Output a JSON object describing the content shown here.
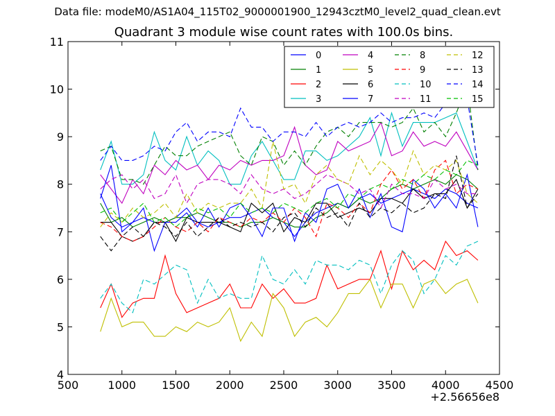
{
  "figure": {
    "suptitle": "Data file: modeM0/AS1A04_115T02_9000001900_12943cztM0_level2_quad_clean.evt",
    "title": "Quadrant 3 module wise count rates with 100.0s bins."
  },
  "chart_data": {
    "type": "line",
    "x_offset_label": "+2.56656e8",
    "xlim": [
      500,
      4500
    ],
    "ylim": [
      4,
      11
    ],
    "xticks": [
      500,
      1000,
      1500,
      2000,
      2500,
      3000,
      3500,
      4000,
      4500
    ],
    "yticks": [
      4,
      5,
      6,
      7,
      8,
      9,
      10,
      11
    ],
    "x": [
      800,
      900,
      1000,
      1100,
      1200,
      1300,
      1400,
      1500,
      1600,
      1700,
      1800,
      1900,
      2000,
      2100,
      2200,
      2300,
      2400,
      2500,
      2600,
      2700,
      2800,
      2900,
      3000,
      3100,
      3200,
      3300,
      3400,
      3500,
      3600,
      3700,
      3800,
      3900,
      4000,
      4100,
      4200,
      4300
    ],
    "grid": false,
    "legend_position": "upper right",
    "legend_columns": 4,
    "series": [
      {
        "name": "0",
        "color": "#0000ff",
        "dash": "solid",
        "values": [
          7.8,
          7.3,
          7.1,
          7.2,
          7.3,
          7.2,
          7.2,
          7.3,
          7.5,
          7.2,
          7.1,
          7.2,
          7.3,
          7.3,
          7.4,
          7.5,
          7.3,
          7.2,
          6.9,
          7.2,
          7.4,
          7.5,
          7.6,
          7.5,
          7.7,
          7.8,
          7.6,
          7.7,
          7.8,
          7.9,
          7.8,
          7.7,
          7.9,
          7.8,
          7.6,
          7.5
        ]
      },
      {
        "name": "1",
        "color": "#008000",
        "dash": "solid",
        "values": [
          7.6,
          7.2,
          7.3,
          7.1,
          7.2,
          7.3,
          7.2,
          7.3,
          7.3,
          7.4,
          7.3,
          7.2,
          7.2,
          7.1,
          7.2,
          7.2,
          7.3,
          7.2,
          7.1,
          7.1,
          7.3,
          7.4,
          7.6,
          7.5,
          7.7,
          7.6,
          7.7,
          7.9,
          8.0,
          7.9,
          8.0,
          8.1,
          8.0,
          8.2,
          8.1,
          7.9
        ]
      },
      {
        "name": "2",
        "color": "#ff0000",
        "dash": "solid",
        "values": [
          5.4,
          5.9,
          5.2,
          5.5,
          5.6,
          5.6,
          6.5,
          5.7,
          5.3,
          5.4,
          5.5,
          5.6,
          5.9,
          5.4,
          5.4,
          5.9,
          5.6,
          5.8,
          5.5,
          5.5,
          5.6,
          6.3,
          5.8,
          5.9,
          6.0,
          6.0,
          6.6,
          5.8,
          6.6,
          6.2,
          6.4,
          6.2,
          6.8,
          6.5,
          6.6,
          6.4
        ]
      },
      {
        "name": "3",
        "color": "#00bfbf",
        "dash": "solid",
        "values": [
          8.3,
          8.9,
          8.0,
          8.0,
          8.2,
          9.1,
          8.5,
          8.3,
          9.0,
          8.4,
          8.7,
          8.5,
          8.0,
          8.0,
          8.6,
          8.9,
          8.5,
          8.1,
          8.1,
          8.7,
          8.7,
          8.5,
          8.6,
          8.8,
          9.0,
          9.4,
          8.6,
          9.5,
          8.8,
          9.3,
          9.3,
          9.3,
          9.4,
          9.5,
          8.9,
          8.3
        ]
      },
      {
        "name": "4",
        "color": "#bf00bf",
        "dash": "solid",
        "values": [
          8.2,
          7.9,
          7.6,
          8.1,
          7.8,
          8.4,
          8.2,
          8.5,
          8.3,
          8.4,
          8.1,
          8.4,
          8.3,
          8.5,
          8.4,
          8.5,
          8.5,
          8.6,
          9.2,
          8.4,
          8.2,
          8.3,
          8.9,
          8.7,
          8.8,
          8.9,
          9.3,
          8.6,
          8.7,
          9.1,
          8.8,
          8.9,
          8.8,
          9.1,
          8.7,
          8.3
        ]
      },
      {
        "name": "5",
        "color": "#bfbf00",
        "dash": "solid",
        "values": [
          4.9,
          5.6,
          5.0,
          5.1,
          5.1,
          4.8,
          4.8,
          5.0,
          4.9,
          5.1,
          5.0,
          5.1,
          5.4,
          4.7,
          5.1,
          4.8,
          5.7,
          5.4,
          4.8,
          5.1,
          5.2,
          5.0,
          5.3,
          5.7,
          5.7,
          6.0,
          5.4,
          5.9,
          5.9,
          5.4,
          5.9,
          6.0,
          5.7,
          5.9,
          6.0,
          5.5
        ]
      },
      {
        "name": "6",
        "color": "#000000",
        "dash": "solid",
        "values": [
          7.2,
          7.2,
          6.9,
          6.8,
          6.9,
          7.2,
          7.2,
          6.8,
          7.3,
          7.2,
          7.2,
          7.2,
          7.1,
          7.0,
          7.6,
          7.4,
          7.6,
          7.0,
          7.3,
          7.2,
          7.6,
          7.6,
          7.3,
          7.4,
          7.5,
          7.4,
          7.7,
          7.7,
          7.6,
          7.9,
          7.7,
          7.8,
          7.8,
          8.1,
          7.5,
          7.9
        ]
      },
      {
        "name": "7",
        "color": "#0000ff",
        "dash": "solid",
        "values": [
          7.7,
          8.4,
          7.0,
          7.2,
          7.5,
          6.6,
          7.2,
          7.2,
          7.4,
          7.1,
          7.5,
          7.1,
          7.5,
          7.6,
          7.3,
          6.9,
          7.5,
          7.5,
          6.8,
          7.4,
          7.2,
          7.9,
          8.0,
          7.5,
          7.9,
          7.3,
          7.8,
          7.1,
          7.0,
          8.1,
          7.9,
          7.5,
          7.8,
          7.5,
          8.2,
          7.1
        ]
      },
      {
        "name": "8",
        "color": "#008000",
        "dash": "dashed",
        "values": [
          8.7,
          8.8,
          8.1,
          8.1,
          8.0,
          8.4,
          8.8,
          8.6,
          8.6,
          8.8,
          8.9,
          9.0,
          9.1,
          8.6,
          8.4,
          9.0,
          8.9,
          8.4,
          8.7,
          8.4,
          8.8,
          9.1,
          9.2,
          9.0,
          9.3,
          9.3,
          9.3,
          9.2,
          9.3,
          9.6,
          9.1,
          9.3,
          9.0,
          9.5,
          10.1,
          8.3
        ]
      },
      {
        "name": "9",
        "color": "#ff0000",
        "dash": "dashed",
        "values": [
          7.2,
          7.1,
          6.9,
          6.8,
          6.9,
          7.1,
          7.3,
          7.1,
          7.0,
          7.2,
          7.0,
          7.3,
          7.2,
          7.1,
          7.3,
          7.2,
          7.4,
          7.2,
          7.5,
          7.3,
          6.9,
          7.6,
          7.5,
          7.3,
          7.6,
          7.4,
          8.0,
          8.3,
          7.9,
          8.1,
          7.7,
          8.3,
          8.5,
          7.8,
          8.0,
          7.9
        ]
      },
      {
        "name": "10",
        "color": "#00bfbf",
        "dash": "dashed",
        "values": [
          5.6,
          5.9,
          5.5,
          5.3,
          6.0,
          5.9,
          6.1,
          6.3,
          6.2,
          5.5,
          6.0,
          5.6,
          5.7,
          5.6,
          5.6,
          6.5,
          6.0,
          5.9,
          6.2,
          5.9,
          6.4,
          6.3,
          6.3,
          6.2,
          6.4,
          6.3,
          5.7,
          6.3,
          6.6,
          6.4,
          5.7,
          6.0,
          6.5,
          6.3,
          6.7,
          6.8
        ]
      },
      {
        "name": "11",
        "color": "#bf00bf",
        "dash": "dashed",
        "values": [
          7.9,
          8.1,
          8.2,
          7.9,
          8.1,
          7.7,
          7.8,
          8.2,
          7.6,
          8.0,
          8.1,
          8.1,
          8.0,
          7.8,
          8.2,
          7.9,
          7.8,
          7.9,
          7.7,
          7.8,
          8.0,
          8.2,
          8.1,
          8.0,
          7.8,
          7.9,
          7.5,
          8.0,
          7.8,
          7.8,
          7.7,
          8.1,
          7.9,
          8.0,
          7.8,
          7.8
        ]
      },
      {
        "name": "12",
        "color": "#bfbf00",
        "dash": "dashed",
        "values": [
          7.1,
          7.4,
          7.2,
          7.5,
          7.3,
          7.4,
          7.6,
          7.3,
          7.8,
          7.4,
          7.6,
          7.5,
          7.6,
          7.6,
          7.9,
          7.5,
          8.9,
          7.9,
          8.0,
          7.6,
          8.2,
          8.4,
          8.1,
          8.0,
          8.6,
          8.2,
          8.5,
          8.3,
          8.0,
          8.7,
          8.2,
          8.4,
          8.3,
          8.5,
          7.8,
          7.6
        ]
      },
      {
        "name": "13",
        "color": "#000000",
        "dash": "dashed",
        "values": [
          6.9,
          6.6,
          6.9,
          7.1,
          6.9,
          7.2,
          7.1,
          6.9,
          7.2,
          6.9,
          7.1,
          7.3,
          7.1,
          7.2,
          7.1,
          7.2,
          7.0,
          7.3,
          7.4,
          7.1,
          7.5,
          7.3,
          7.4,
          7.1,
          7.6,
          7.3,
          7.5,
          7.4,
          7.6,
          7.4,
          7.5,
          7.8,
          7.7,
          8.6,
          7.5,
          7.8
        ]
      },
      {
        "name": "14",
        "color": "#0000ff",
        "dash": "dashed",
        "values": [
          8.5,
          8.8,
          8.5,
          8.5,
          8.6,
          8.8,
          8.7,
          9.1,
          9.3,
          8.9,
          9.1,
          9.1,
          9.0,
          9.6,
          9.2,
          9.2,
          8.9,
          9.1,
          9.1,
          9.0,
          9.3,
          9.0,
          9.2,
          9.3,
          9.2,
          9.3,
          9.5,
          9.3,
          9.4,
          9.4,
          9.5,
          9.4,
          9.7,
          9.6,
          9.8,
          8.4
        ]
      },
      {
        "name": "15",
        "color": "#00bf00",
        "dash": "dashed",
        "values": [
          7.4,
          7.5,
          7.2,
          7.4,
          7.6,
          7.2,
          7.3,
          7.1,
          7.3,
          7.5,
          7.4,
          7.5,
          7.3,
          7.6,
          7.4,
          7.5,
          7.4,
          7.6,
          7.5,
          7.4,
          7.6,
          7.7,
          7.5,
          7.8,
          7.7,
          7.9,
          8.0,
          7.9,
          8.1,
          8.0,
          8.2,
          8.1,
          8.3,
          8.2,
          8.5,
          8.4
        ]
      }
    ]
  }
}
